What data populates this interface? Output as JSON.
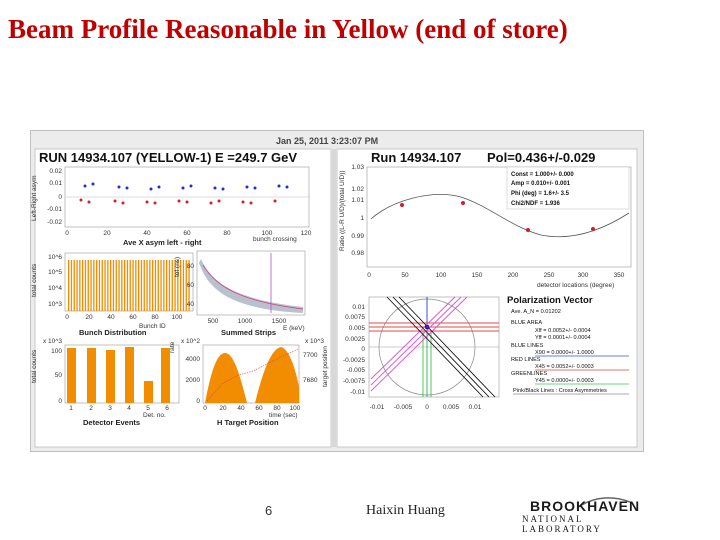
{
  "slide": {
    "title": "Beam Profile Reasonable in Yellow (end of store)",
    "page_number": "6",
    "author": "Haixin Huang",
    "logo_top": "BROOKHAVEN",
    "logo_bottom": "NATIONAL LABORATORY"
  },
  "display": {
    "timestamp": "Jan 25, 2011  3:23:07 PM",
    "run_header_left": "RUN 14934.107 (YELLOW-1) E =249.7 GeV",
    "run_header_right_run": "Run 14934.107",
    "run_header_right_pol": "Pol=0.436+/-0.029",
    "asym": {
      "ylabel": "Left-Right asym",
      "caption": "Ave X asym left - right",
      "xlabel": "bunch crossing",
      "yticks": [
        "0.02",
        "0.01",
        "0",
        "-0.01",
        "-0.02"
      ],
      "xticks": [
        "0",
        "20",
        "40",
        "60",
        "80",
        "100",
        "120"
      ]
    },
    "ratio": {
      "ylabel": "Ratio ((L-R U/D)/(total U/D))",
      "xlabel": "detector locations (degree)",
      "yticks": [
        "1.03",
        "1.02",
        "1.01",
        "1",
        "0.99",
        "0.98"
      ],
      "xticks": [
        "0",
        "50",
        "100",
        "150",
        "200",
        "250",
        "300",
        "350"
      ],
      "fit": [
        "Const =  1.000+/-  0.000",
        "Amp =  0.010+/-  0.001",
        "Phi (deg) =  1.6+/-  3.5",
        "Chi2/NDF =  1.936"
      ]
    },
    "bunch": {
      "ylabel": "total counts",
      "caption": "Bunch Distribution",
      "xlabel": "Bunch ID",
      "yticks": [
        "10^6",
        "10^5",
        "10^4",
        "10^3"
      ],
      "xticks": [
        "0",
        "20",
        "40",
        "60",
        "80",
        "100"
      ]
    },
    "strips": {
      "ylabel": "tof (ns)",
      "caption": "Summed Strips",
      "xlabel": "E (keV)",
      "yticks": [
        "80",
        "60",
        "40"
      ],
      "xticks": [
        "500",
        "1000",
        "1500"
      ]
    },
    "detector": {
      "ylabel": "total counts",
      "scale": "x 10^3",
      "caption": "Detector Events",
      "xlabel": "Det. no.",
      "yticks": [
        "100",
        "50",
        "0"
      ],
      "xticks": [
        "1",
        "2",
        "3",
        "4",
        "5",
        "6"
      ]
    },
    "htarget": {
      "ylabel": "rate",
      "scale": "x 10^2",
      "right_scale": "x 10^3",
      "right_label": "target position",
      "caption": "H Target Position",
      "xlabel": "time (sec)",
      "yticks": [
        "4000",
        "2000",
        "0"
      ],
      "right_ticks": [
        "7700",
        "7680"
      ],
      "xticks": [
        "0",
        "20",
        "40",
        "60",
        "80",
        "100"
      ]
    },
    "pv_axes": {
      "yticks": [
        "0.01",
        "0.0075",
        "0.005",
        "0.0025",
        "0",
        "-0.0025",
        "-0.005",
        "-0.0075",
        "-0.01"
      ],
      "xticks": [
        "-0.01",
        "-0.005",
        "0",
        "0.005",
        "0.01"
      ]
    },
    "pv": {
      "title": "Polarization Vector",
      "ave": "Ave. A_N = 0.01202",
      "blue_area": "BLUE AREA",
      "xff": "Xff  =  0.0052+/- 0.0004",
      "yff": "Yff  =  0.0001+/- 0.0004",
      "blue_lines": "BLUE LINES",
      "x90": "X90 =  0.0000+/- 1.0000",
      "red_lines": "RED LINES",
      "x45": "X45 =  0.0052+/- 0.0003",
      "green_lines": "GREENLINES",
      "y45": "Y45 =  0.0000+/- 0.0003",
      "pink_black": "Pink/Black Lines : Cross Asymmetries"
    },
    "colors": {
      "title_red": "#c00000",
      "hist_orange": "#f28c00",
      "blue_points": "#1d2fd1",
      "red_points": "#d11e2b"
    }
  }
}
